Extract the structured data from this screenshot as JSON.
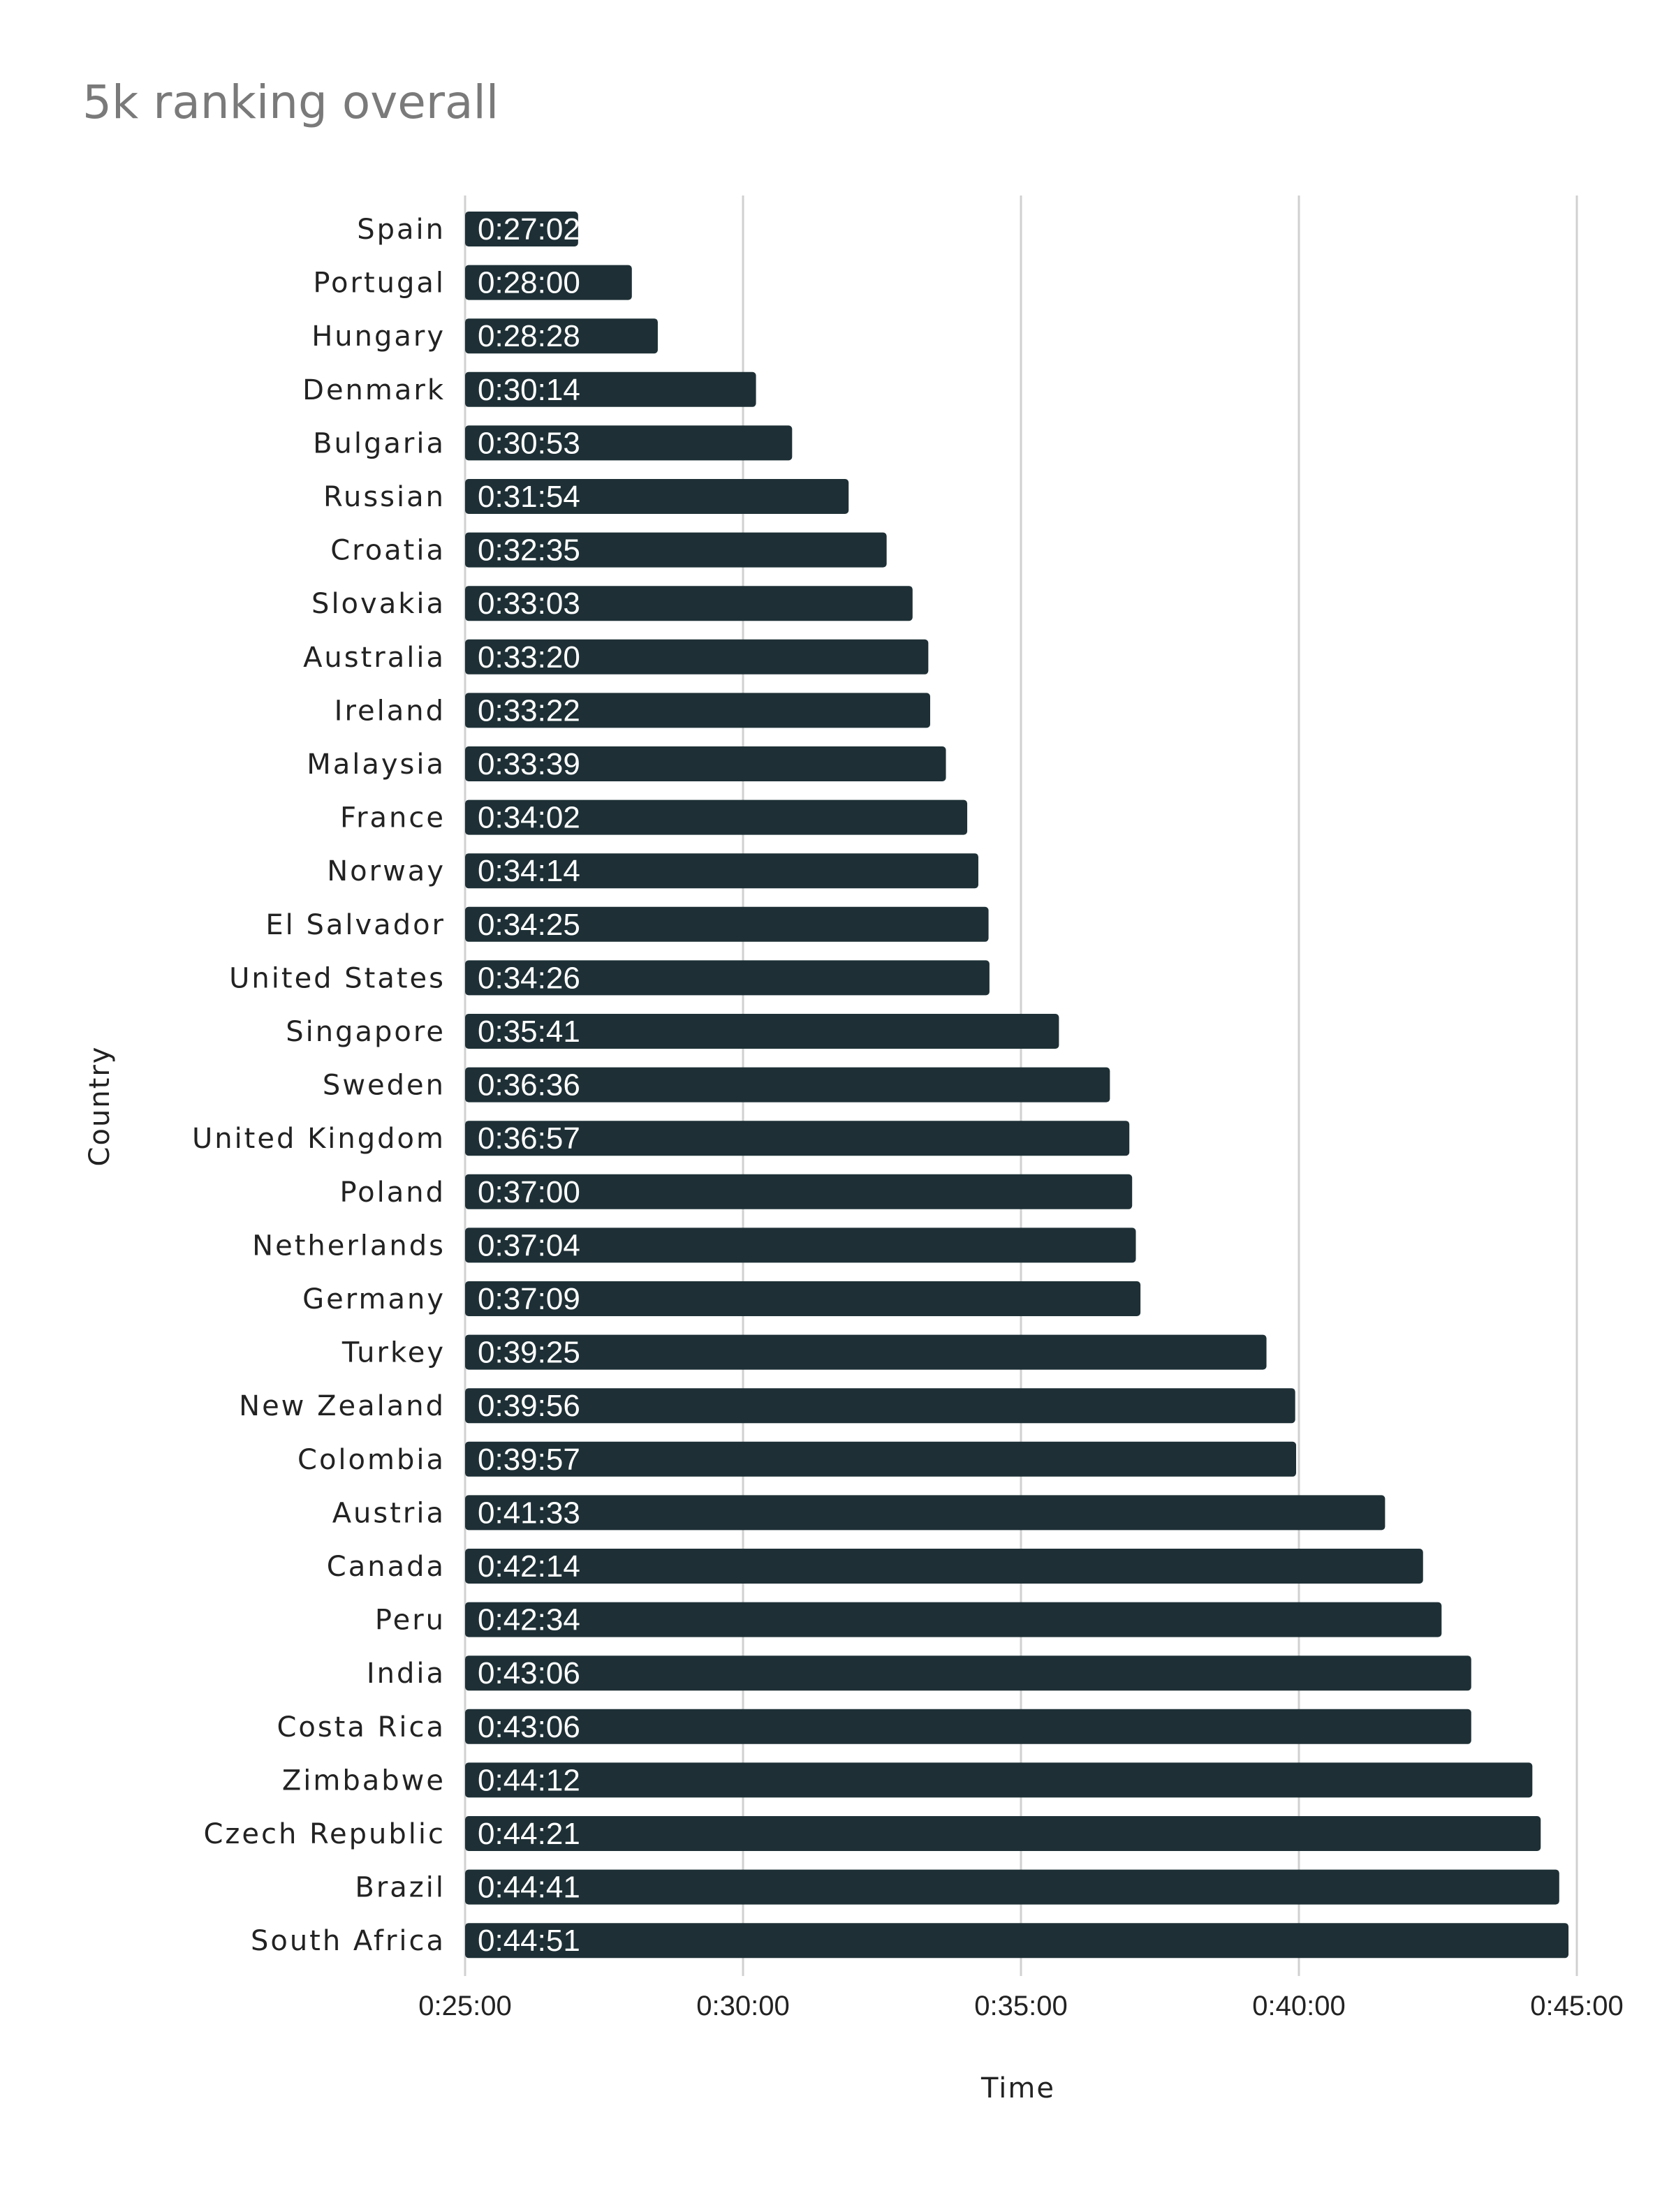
{
  "chart_data": {
    "type": "bar",
    "orientation": "horizontal",
    "title": "5k ranking overall",
    "xlabel": "Time",
    "ylabel": "Country",
    "xlim": [
      "0:25:00",
      "0:45:00"
    ],
    "x_ticks": [
      "0:25:00",
      "0:30:00",
      "0:35:00",
      "0:40:00",
      "0:45:00"
    ],
    "grid": "vertical",
    "bar_color": "#1e3036",
    "categories": [
      "Spain",
      "Portugal",
      "Hungary",
      "Denmark",
      "Bulgaria",
      "Russian",
      "Croatia",
      "Slovakia",
      "Australia",
      "Ireland",
      "Malaysia",
      "France",
      "Norway",
      "El Salvador",
      "United States",
      "Singapore",
      "Sweden",
      "United Kingdom",
      "Poland",
      "Netherlands",
      "Germany",
      "Turkey",
      "New Zealand",
      "Colombia",
      "Austria",
      "Canada",
      "Peru",
      "India",
      "Costa Rica",
      "Zimbabwe",
      "Czech Republic",
      "Brazil",
      "South Africa"
    ],
    "values": [
      "0:27:02",
      "0:28:00",
      "0:28:28",
      "0:30:14",
      "0:30:53",
      "0:31:54",
      "0:32:35",
      "0:33:03",
      "0:33:20",
      "0:33:22",
      "0:33:39",
      "0:34:02",
      "0:34:14",
      "0:34:25",
      "0:34:26",
      "0:35:41",
      "0:36:36",
      "0:36:57",
      "0:37:00",
      "0:37:04",
      "0:37:09",
      "0:39:25",
      "0:39:56",
      "0:39:57",
      "0:41:33",
      "0:42:14",
      "0:42:34",
      "0:43:06",
      "0:43:06",
      "0:44:12",
      "0:44:21",
      "0:44:41",
      "0:44:51"
    ]
  }
}
